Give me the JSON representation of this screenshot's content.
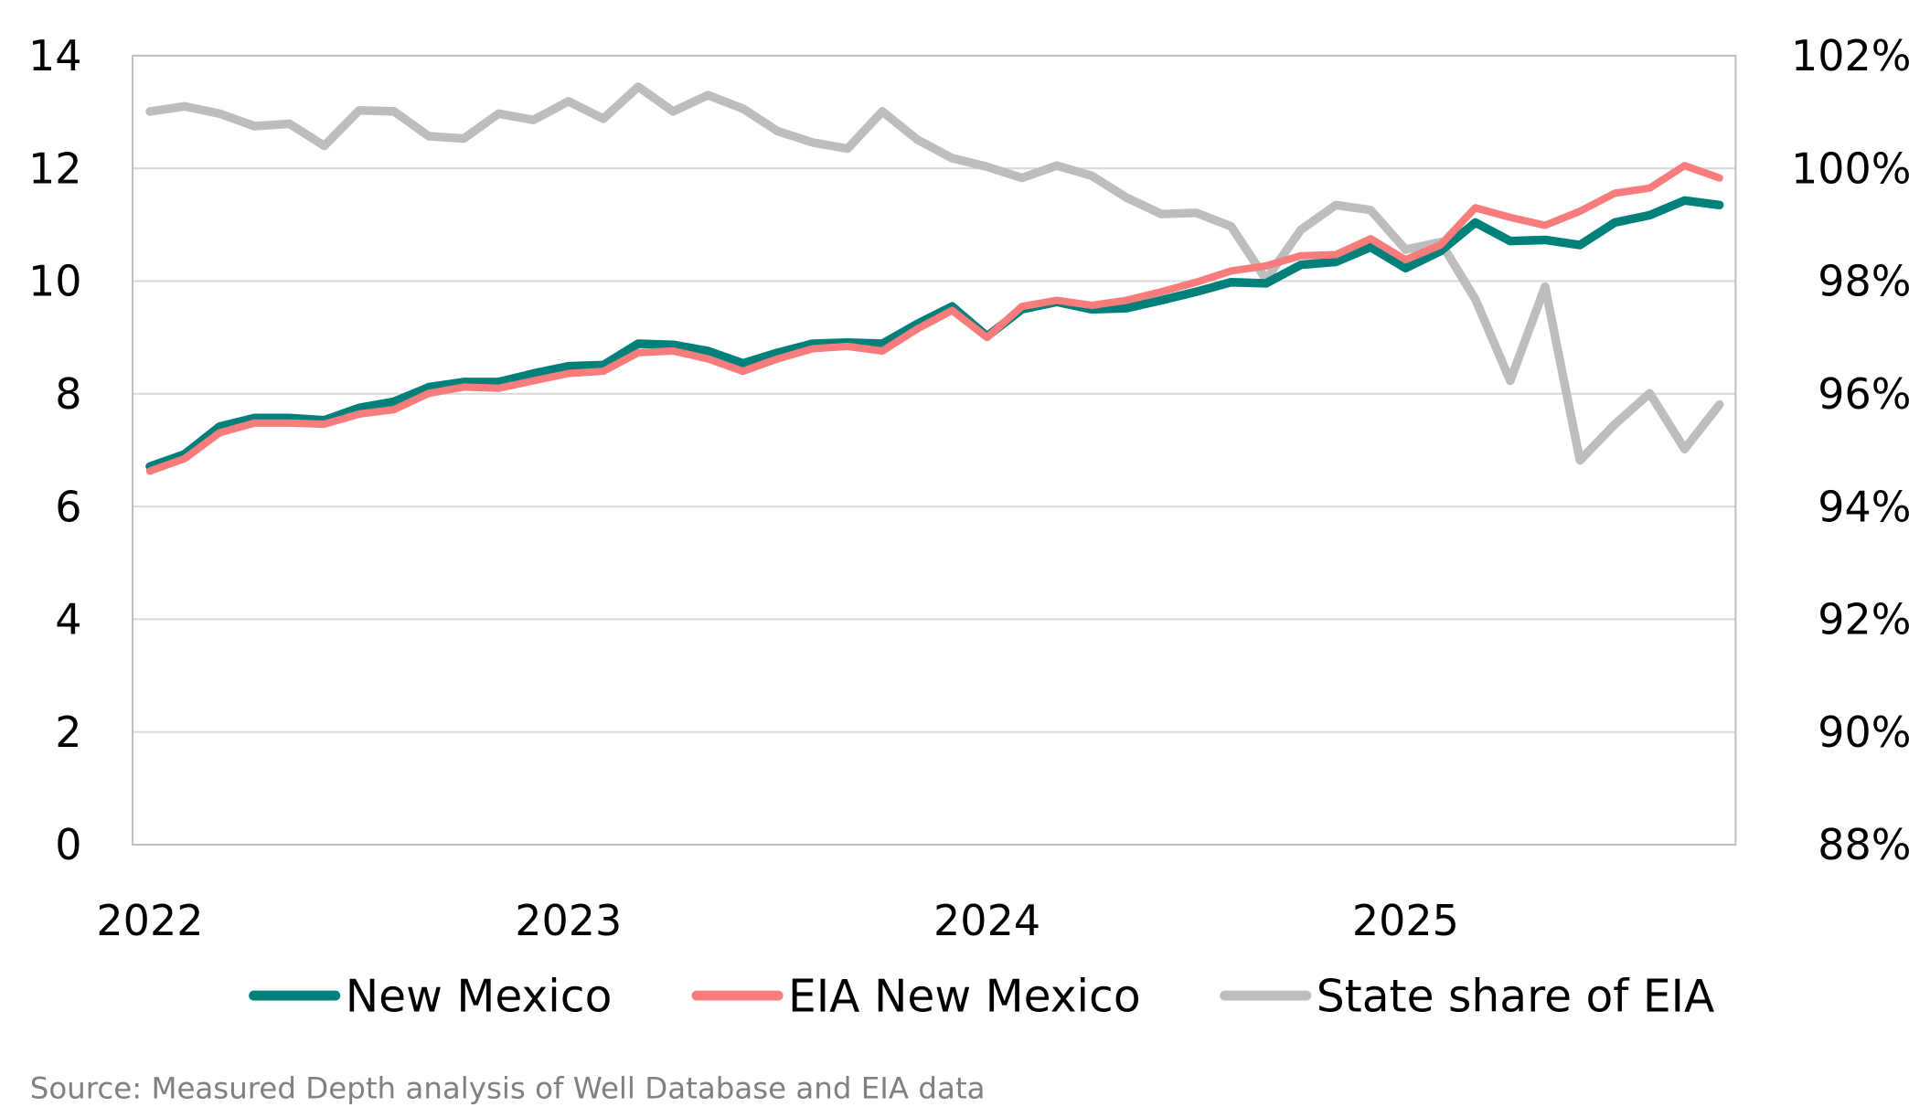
{
  "chart_data": {
    "type": "line",
    "title": "",
    "x_tick_labels": [
      "2022",
      "2023",
      "2024",
      "2025"
    ],
    "x_start": "2022-01",
    "x_interval": "month",
    "y_left": {
      "ylim": [
        0,
        14
      ],
      "ticks": [
        "0",
        "2",
        "4",
        "6",
        "8",
        "10",
        "12",
        "14"
      ],
      "label": ""
    },
    "y_right": {
      "ylim": [
        88,
        102
      ],
      "ticks": [
        "88%",
        "90%",
        "92%",
        "94%",
        "96%",
        "98%",
        "100%",
        "102%"
      ],
      "label": ""
    },
    "grid": true,
    "legend_position": "bottom",
    "series": [
      {
        "name": "New Mexico",
        "axis": "left",
        "color": "#00807A",
        "values": [
          6.71,
          6.93,
          7.42,
          7.57,
          7.57,
          7.53,
          7.75,
          7.86,
          8.12,
          8.21,
          8.21,
          8.36,
          8.49,
          8.51,
          8.89,
          8.87,
          8.76,
          8.54,
          8.73,
          8.89,
          8.91,
          8.89,
          9.24,
          9.55,
          9.02,
          9.5,
          9.63,
          9.5,
          9.52,
          9.66,
          9.81,
          9.98,
          9.96,
          10.29,
          10.34,
          10.6,
          10.23,
          10.53,
          11.04,
          10.71,
          10.73,
          10.64,
          11.04,
          11.17,
          11.43,
          11.35
        ]
      },
      {
        "name": "EIA New Mexico",
        "axis": "left",
        "color": "#F87C7C",
        "values": [
          6.63,
          6.85,
          7.31,
          7.48,
          7.48,
          7.46,
          7.64,
          7.72,
          8.01,
          8.12,
          8.1,
          8.23,
          8.36,
          8.4,
          8.73,
          8.76,
          8.62,
          8.4,
          8.62,
          8.8,
          8.84,
          8.76,
          9.15,
          9.48,
          9.0,
          9.55,
          9.66,
          9.57,
          9.66,
          9.81,
          9.98,
          10.18,
          10.27,
          10.45,
          10.47,
          10.75,
          10.38,
          10.64,
          11.3,
          11.13,
          10.99,
          11.24,
          11.56,
          11.65,
          12.05,
          11.83
        ]
      },
      {
        "name": "State share of EIA",
        "axis": "right",
        "color": "#BDBDBD",
        "values": [
          101.01,
          101.1,
          100.97,
          100.75,
          100.79,
          100.4,
          101.03,
          101.01,
          100.57,
          100.53,
          100.97,
          100.86,
          101.19,
          100.88,
          101.45,
          101.01,
          101.3,
          101.06,
          100.66,
          100.46,
          100.35,
          101.01,
          100.51,
          100.18,
          100.03,
          99.83,
          100.05,
          99.87,
          99.48,
          99.19,
          99.21,
          98.97,
          98.03,
          98.91,
          99.35,
          99.26,
          98.56,
          98.69,
          97.68,
          96.23,
          97.9,
          94.82,
          95.46,
          96.01,
          95.02,
          95.81
        ]
      }
    ],
    "source": "Source: Measured Depth analysis of Well Database and EIA data"
  }
}
